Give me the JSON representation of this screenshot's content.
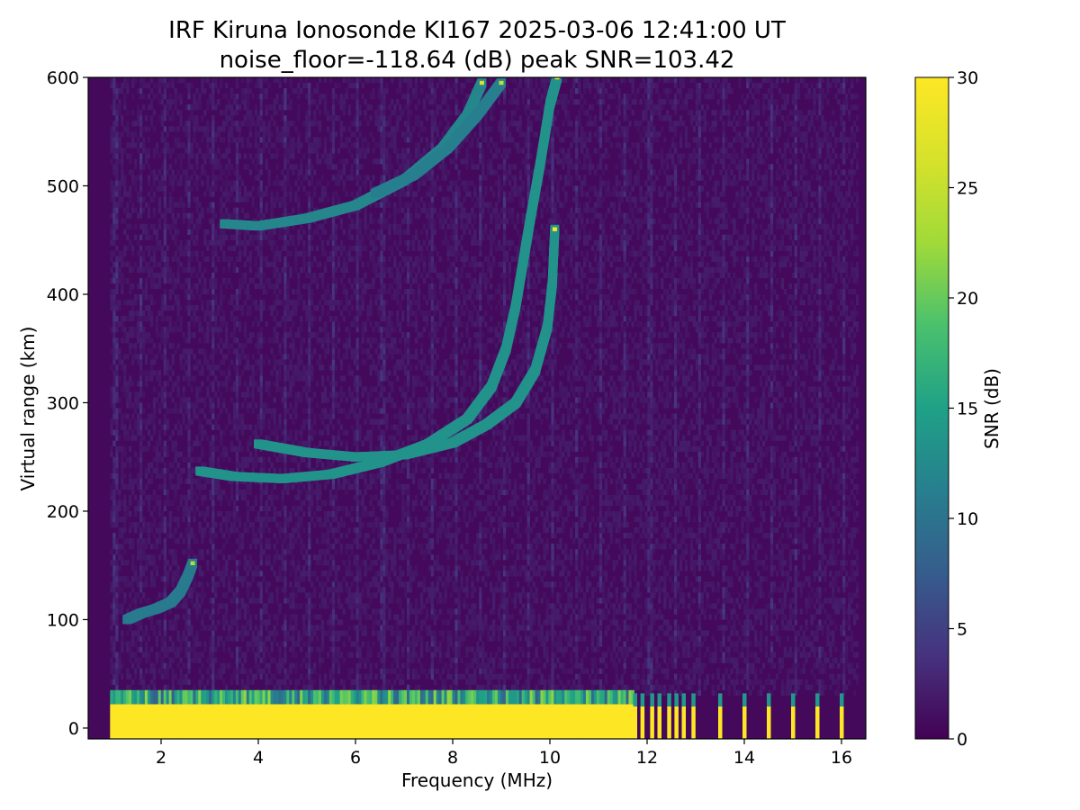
{
  "chart_data": {
    "type": "heatmap",
    "title": "IRF Kiruna Ionosonde KI167 2025-03-06 12:41:00  UT",
    "subtitle": "noise_floor=-118.64 (dB) peak SNR=103.42",
    "xlabel": "Frequency (MHz)",
    "ylabel": "Virtual range (km)",
    "colorbar_label": "SNR (dB)",
    "colormap": "viridis",
    "xlim": [
      0.5,
      16.5
    ],
    "ylim": [
      -10,
      600
    ],
    "clim": [
      0,
      30
    ],
    "x_ticks": [
      2,
      4,
      6,
      8,
      10,
      12,
      14,
      16
    ],
    "y_ticks": [
      0,
      100,
      200,
      300,
      400,
      500,
      600
    ],
    "colorbar_ticks": [
      0,
      5,
      10,
      15,
      20,
      25,
      30
    ],
    "grid": false,
    "traces": [
      {
        "name_hint": "E-layer echo",
        "snr": 24,
        "points": [
          [
            1.3,
            100
          ],
          [
            1.6,
            106
          ],
          [
            1.9,
            110
          ],
          [
            2.2,
            116
          ],
          [
            2.4,
            126
          ],
          [
            2.55,
            140
          ],
          [
            2.65,
            152
          ]
        ]
      },
      {
        "name_hint": "F-layer O trace",
        "snr": 30,
        "points": [
          [
            2.8,
            237
          ],
          [
            3.5,
            232
          ],
          [
            4.5,
            230
          ],
          [
            5.5,
            234
          ],
          [
            6.5,
            245
          ],
          [
            7.5,
            262
          ],
          [
            8.3,
            285
          ],
          [
            8.8,
            315
          ],
          [
            9.1,
            350
          ],
          [
            9.3,
            390
          ],
          [
            9.45,
            430
          ],
          [
            9.6,
            470
          ],
          [
            9.8,
            520
          ],
          [
            10.0,
            575
          ],
          [
            10.15,
            600
          ]
        ]
      },
      {
        "name_hint": "F-layer X trace",
        "snr": 30,
        "points": [
          [
            4.0,
            262
          ],
          [
            5.0,
            254
          ],
          [
            6.0,
            250
          ],
          [
            7.0,
            252
          ],
          [
            8.0,
            263
          ],
          [
            8.7,
            280
          ],
          [
            9.3,
            300
          ],
          [
            9.7,
            330
          ],
          [
            9.95,
            370
          ],
          [
            10.05,
            410
          ],
          [
            10.1,
            460
          ]
        ]
      },
      {
        "name_hint": "Multiple-hop O",
        "snr": 27,
        "points": [
          [
            3.3,
            465
          ],
          [
            4.0,
            463
          ],
          [
            5.0,
            470
          ],
          [
            6.0,
            482
          ],
          [
            7.0,
            505
          ],
          [
            7.8,
            535
          ],
          [
            8.3,
            565
          ],
          [
            8.6,
            595
          ]
        ]
      },
      {
        "name_hint": "Multiple-hop X",
        "snr": 25,
        "points": [
          [
            6.4,
            493
          ],
          [
            7.2,
            510
          ],
          [
            7.9,
            535
          ],
          [
            8.5,
            565
          ],
          [
            9.0,
            595
          ]
        ]
      }
    ],
    "ground_band": {
      "range_km": [
        -10,
        22
      ],
      "freq_mhz": [
        0.95,
        11.7
      ],
      "snr": 30
    },
    "high_freq_spikes_mhz": [
      11.75,
      11.9,
      12.1,
      12.25,
      12.45,
      12.6,
      12.75,
      12.95,
      13.5,
      14.0,
      14.5,
      15.0,
      15.5,
      16.0
    ]
  }
}
